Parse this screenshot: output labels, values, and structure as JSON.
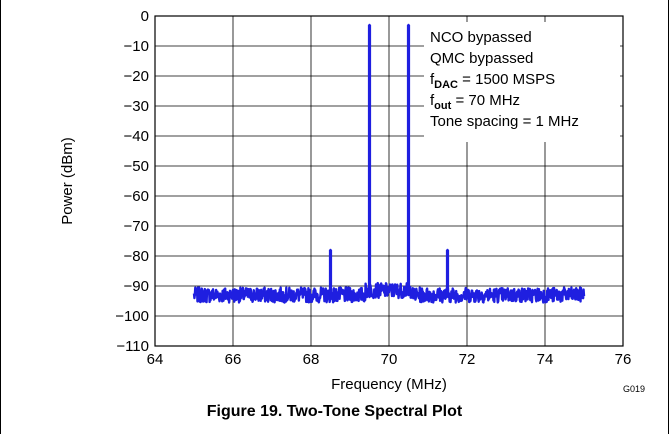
{
  "chart_data": {
    "type": "line",
    "title": "",
    "xlabel": "Frequency (MHz)",
    "ylabel": "Power (dBm)",
    "xlim": [
      64,
      76
    ],
    "ylim": [
      -110,
      0
    ],
    "xticks": [
      64,
      66,
      68,
      70,
      72,
      74,
      76
    ],
    "yticks": [
      0,
      -10,
      -20,
      -30,
      -40,
      -50,
      -60,
      -70,
      -80,
      -90,
      -100,
      -110
    ],
    "xtick_labels": [
      "64",
      "66",
      "68",
      "70",
      "72",
      "74",
      "76"
    ],
    "ytick_labels": [
      "0",
      "−10",
      "−20",
      "−30",
      "−40",
      "−50",
      "−60",
      "−70",
      "−80",
      "−90",
      "−100",
      "−110"
    ],
    "grid": true,
    "series": [
      {
        "color": "#1f1fe0",
        "x_range": [
          65,
          75
        ],
        "noise_floor_dbm": -93,
        "peaks": [
          {
            "x": 68.5,
            "y": -78
          },
          {
            "x": 69.5,
            "y": -3
          },
          {
            "x": 70.5,
            "y": -3
          },
          {
            "x": 71.5,
            "y": -78
          }
        ]
      }
    ],
    "annotations": [
      {
        "text": "NCO bypassed"
      },
      {
        "text": "QMC bypassed"
      },
      {
        "prefix": "f",
        "sub": "DAC",
        "text": " = 1500 MSPS"
      },
      {
        "prefix": "f",
        "sub": "out",
        "text": " = 70 MHz"
      },
      {
        "text": "Tone spacing  = 1 MHz"
      }
    ]
  },
  "figure_code": "G019",
  "caption": "Figure 19. Two-Tone Spectral Plot"
}
